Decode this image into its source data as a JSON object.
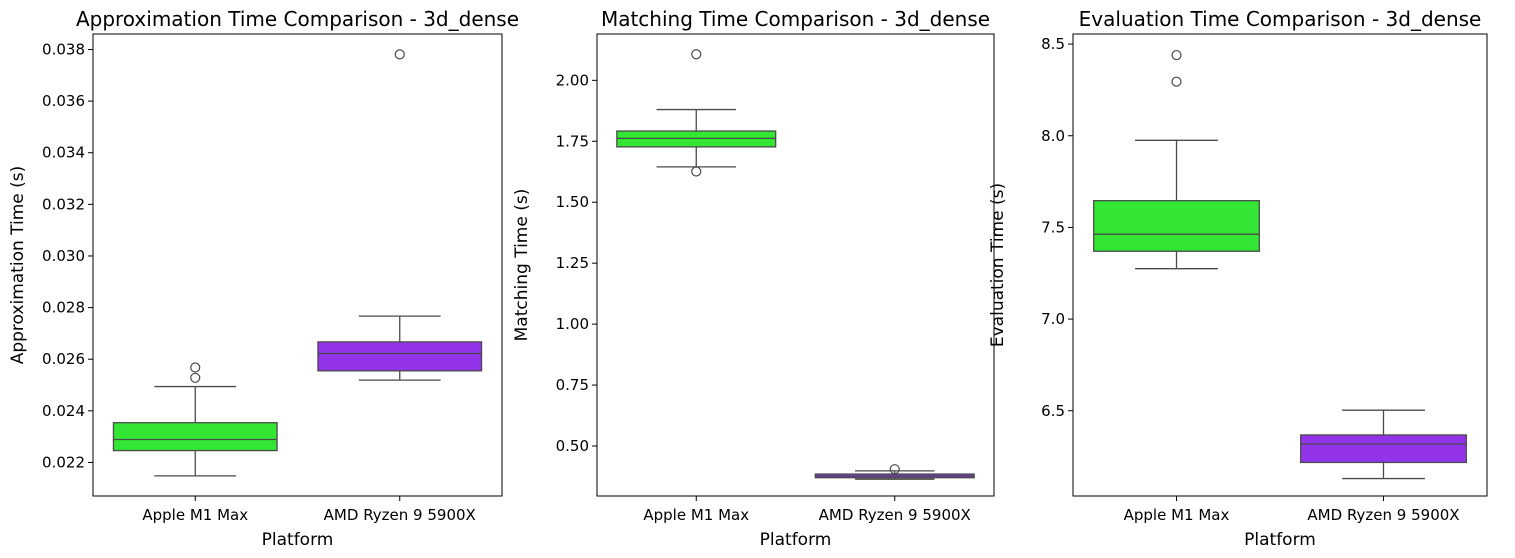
{
  "chart_data": [
    {
      "type": "box",
      "title": "Approximation Time Comparison - 3d_dense",
      "xlabel": "Platform",
      "ylabel": "Approximation Time (s)",
      "ylim": [
        0.0207,
        0.0386
      ],
      "yticks": [
        "0.022",
        "0.024",
        "0.026",
        "0.028",
        "0.030",
        "0.032",
        "0.034",
        "0.036",
        "0.038"
      ],
      "categories": [
        "Apple M1 Max",
        "AMD Ryzen 9 5900X"
      ],
      "boxes": [
        {
          "category": "Apple M1 Max",
          "color": "#33e633",
          "whisker_low": 0.02148,
          "q1": 0.02246,
          "median": 0.02289,
          "q3": 0.02354,
          "whisker_high": 0.02494,
          "outliers": [
            0.02528,
            0.02568
          ]
        },
        {
          "category": "AMD Ryzen 9 5900X",
          "color": "#9333ea",
          "whisker_low": 0.02519,
          "q1": 0.02555,
          "median": 0.02622,
          "q3": 0.02667,
          "whisker_high": 0.02767,
          "outliers": [
            0.03781
          ]
        }
      ]
    },
    {
      "type": "box",
      "title": "Matching Time Comparison - 3d_dense",
      "xlabel": "Platform",
      "ylabel": "Matching Time (s)",
      "ylim": [
        0.295,
        2.19
      ],
      "yticks": [
        "0.50",
        "0.75",
        "1.00",
        "1.25",
        "1.50",
        "1.75",
        "2.00"
      ],
      "categories": [
        "Apple M1 Max",
        "AMD Ryzen 9 5900X"
      ],
      "boxes": [
        {
          "category": "Apple M1 Max",
          "color": "#33e633",
          "whisker_low": 1.645,
          "q1": 1.727,
          "median": 1.762,
          "q3": 1.792,
          "whisker_high": 1.88,
          "outliers": [
            1.626,
            2.107
          ]
        },
        {
          "category": "AMD Ryzen 9 5900X",
          "color": "#9333ea",
          "whisker_low": 0.364,
          "q1": 0.37,
          "median": 0.377,
          "q3": 0.385,
          "whisker_high": 0.398,
          "outliers": [
            0.405
          ]
        }
      ]
    },
    {
      "type": "box",
      "title": "Evaluation Time Comparison - 3d_dense",
      "xlabel": "Platform",
      "ylabel": "Evaluation Time (s)",
      "ylim": [
        6.035,
        8.555
      ],
      "yticks": [
        "6.5",
        "7.0",
        "7.5",
        "8.0",
        "8.5"
      ],
      "categories": [
        "Apple M1 Max",
        "AMD Ryzen 9 5900X"
      ],
      "boxes": [
        {
          "category": "Apple M1 Max",
          "color": "#33e633",
          "whisker_low": 7.275,
          "q1": 7.37,
          "median": 7.463,
          "q3": 7.646,
          "whisker_high": 7.975,
          "outliers": [
            8.295,
            8.44
          ]
        },
        {
          "category": "AMD Ryzen 9 5900X",
          "color": "#9333ea",
          "whisker_low": 6.13,
          "q1": 6.218,
          "median": 6.318,
          "q3": 6.368,
          "whisker_high": 6.503,
          "outliers": []
        }
      ]
    }
  ]
}
